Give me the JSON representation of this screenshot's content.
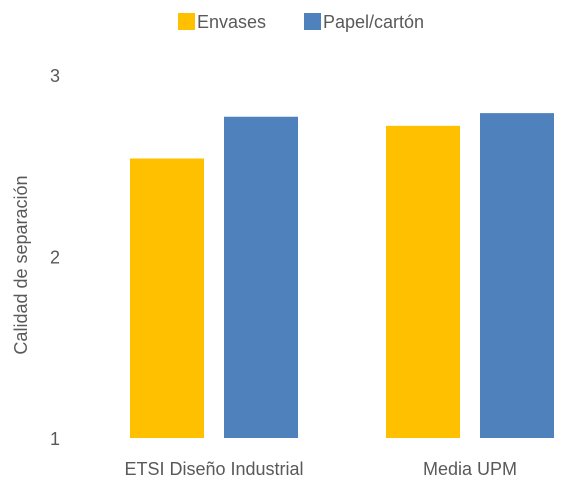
{
  "chart_data": {
    "type": "bar",
    "title": "",
    "xlabel": "",
    "ylabel": "Calidad de separación",
    "categories": [
      "ETSI Diseño Industrial",
      "Media UPM"
    ],
    "series": [
      {
        "name": "Envases",
        "values": [
          2.54,
          2.72
        ],
        "color": "#FFC000"
      },
      {
        "name": "Papel/cartón",
        "values": [
          2.77,
          2.79
        ],
        "color": "#4F81BD"
      }
    ],
    "ylim": [
      1,
      3
    ],
    "yticks": [
      "1",
      "2",
      "3"
    ],
    "grid": false,
    "legend_position": "top"
  }
}
